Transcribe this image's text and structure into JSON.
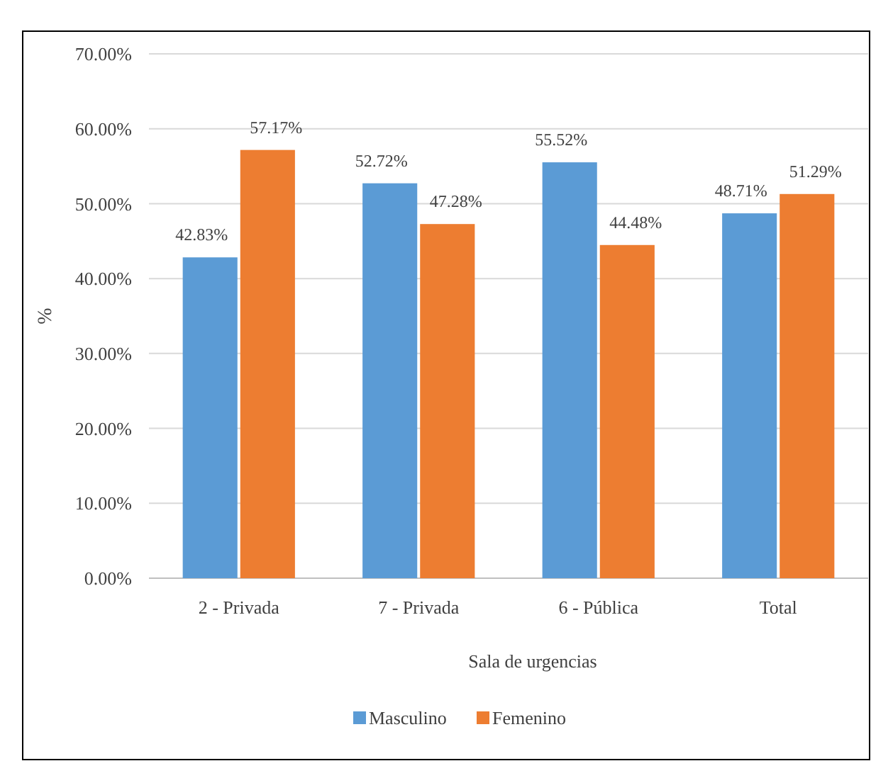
{
  "chart_data": {
    "type": "bar",
    "xlabel": "Sala de urgencias",
    "ylabel": "%",
    "categories": [
      "2 - Privada",
      "7 - Privada",
      "6 - Pública",
      "Total"
    ],
    "series": [
      {
        "name": "Masculino",
        "color": "#5b9bd5",
        "values": [
          42.83,
          52.72,
          55.52,
          48.71
        ],
        "value_labels": [
          "42.83%",
          "52.72%",
          "55.52%",
          "48.71%"
        ]
      },
      {
        "name": "Femenino",
        "color": "#ed7d31",
        "values": [
          57.17,
          47.28,
          44.48,
          51.29
        ],
        "value_labels": [
          "57.17%",
          "47.28%",
          "44.48%",
          "51.29%"
        ]
      }
    ],
    "ylim": [
      0,
      70
    ],
    "yticks": [
      {
        "value": 0,
        "label": "0.00%"
      },
      {
        "value": 10,
        "label": "10.00%"
      },
      {
        "value": 20,
        "label": "20.00%"
      },
      {
        "value": 30,
        "label": "30.00%"
      },
      {
        "value": 40,
        "label": "40.00%"
      },
      {
        "value": 50,
        "label": "50.00%"
      },
      {
        "value": 60,
        "label": "60.00%"
      },
      {
        "value": 70,
        "label": "70.00%"
      }
    ],
    "grid": "y",
    "legend": "bottom"
  }
}
